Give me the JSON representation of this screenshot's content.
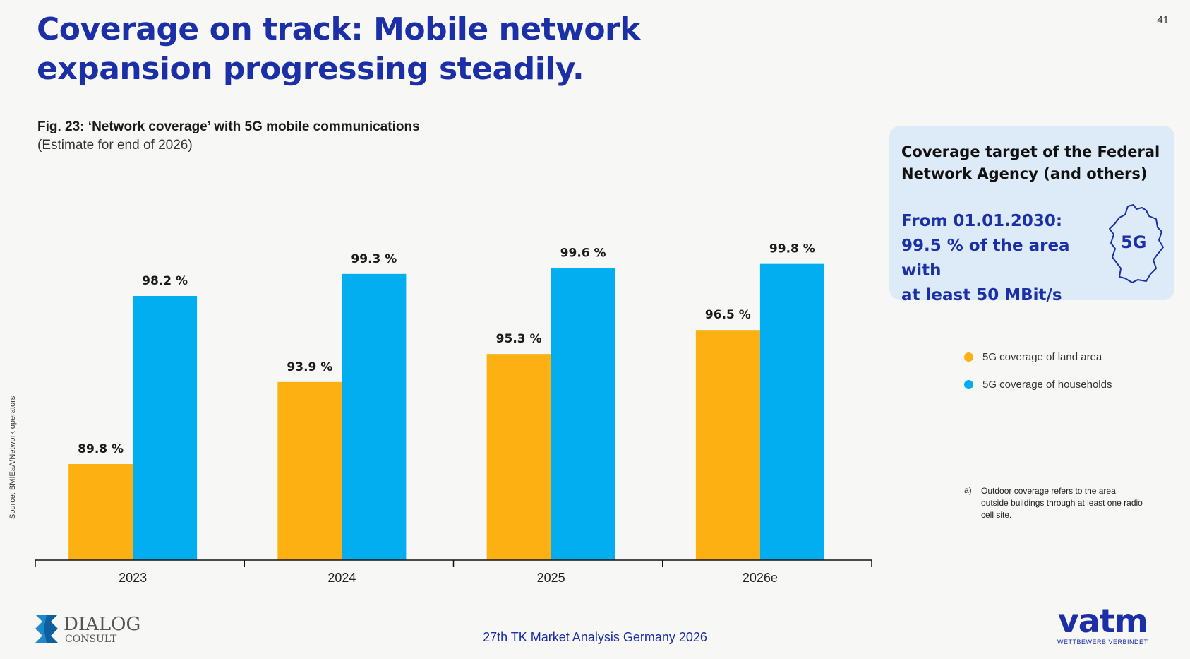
{
  "header": {
    "title": "Coverage on track: Mobile network expansion progressing steadily.",
    "page_number": "41"
  },
  "figure": {
    "title": "Fig. 23: ‘Network coverage’ with 5G mobile communications",
    "subtitle": "(Estimate for end of 2026)",
    "source": "Source: BMIEaA/Network operators"
  },
  "chart_data": {
    "type": "bar",
    "categories": [
      "2023",
      "2024",
      "2025",
      "2026e"
    ],
    "series": [
      {
        "name": "5G coverage of land area",
        "values": [
          89.8,
          93.9,
          95.3,
          96.5
        ],
        "color": "#fdb012"
      },
      {
        "name": "5G coverage of households",
        "values": [
          98.2,
          99.3,
          99.6,
          99.8
        ],
        "color": "#02aeef"
      }
    ],
    "data_labels": [
      [
        "89.8 %",
        "93.9 %",
        "95.3 %",
        "96.5 %"
      ],
      [
        "98.2 %",
        "99.3 %",
        "99.6 %",
        "99.8 %"
      ]
    ],
    "ylim": [
      85,
      100
    ],
    "grid": false,
    "legend_position": "right"
  },
  "target_box": {
    "heading": "Coverage target of the Federal Network Agency (and others)",
    "target_lines": [
      "From 01.01.2030:",
      "99.5 % of the area with",
      "at least 50 MBit/s"
    ],
    "map_label": "5G",
    "map_icon": "germany-map-icon",
    "background": "#dcebf7"
  },
  "legend": [
    {
      "label": "5G coverage of land area",
      "color": "#fdb012"
    },
    {
      "label": "5G coverage of households",
      "color": "#02aeef"
    }
  ],
  "footnote": {
    "mark": "a)",
    "text": "Outdoor coverage refers to the area outside buildings through at least one radio cell site."
  },
  "footer": {
    "center_text": "27th TK Market Analysis Germany 2026",
    "left_logo": {
      "line1": "DIALOG",
      "line2": "CONSULT"
    },
    "right_logo": {
      "word": "vatm",
      "tagline": "WETTBEWERB VERBINDET"
    }
  },
  "colors": {
    "brand_blue": "#1b2fa6",
    "land_area": "#fdb012",
    "households": "#02aeef"
  }
}
